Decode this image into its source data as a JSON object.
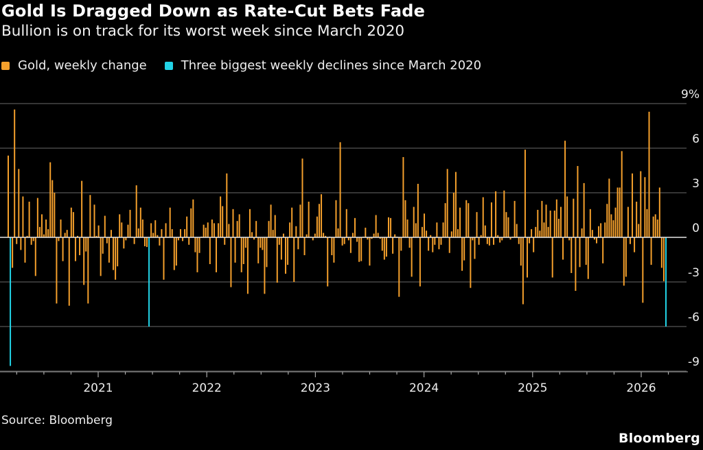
{
  "title": "Gold Is Dragged Down as Rate-Cut Bets Fade",
  "subtitle": "Bullion is on track for its worst week since March 2020",
  "source": "Source: Bloomberg",
  "logo": "Bloomberg",
  "colors": {
    "background": "#000000",
    "gold": "#f5a02c",
    "highlight": "#22d3e6",
    "grid": "#555555"
  },
  "chart_data": {
    "type": "bar",
    "frequency": "weekly",
    "ylabel": "",
    "xlabel": "",
    "ylim": [
      -9.5,
      9
    ],
    "y_ticks": [
      9,
      6,
      3,
      0,
      -3,
      -6,
      -9
    ],
    "y_tick_labels": [
      "9%",
      "6",
      "3",
      "0",
      "-3",
      "-6",
      "-9"
    ],
    "x_tick_labels": [
      "2021",
      "2022",
      "2023",
      "2024",
      "2025",
      "2026"
    ],
    "grid": true,
    "legend": "top-left",
    "series": [
      {
        "name": "Gold, weekly change",
        "color": "#f5a02c",
        "values": [
          5.5,
          -8.65,
          -2.05,
          8.6,
          -0.45,
          4.6,
          -0.85,
          2.75,
          -1.7,
          0.1,
          2.4,
          -0.5,
          -0.25,
          -2.6,
          2.65,
          0.7,
          1.55,
          0.2,
          1.2,
          0.55,
          5.05,
          3.85,
          3.0,
          -4.45,
          -0.25,
          1.2,
          -1.6,
          0.3,
          0.5,
          -4.6,
          2.0,
          1.7,
          -1.6,
          0.1,
          -1.2,
          3.8,
          -3.2,
          -0.95,
          -4.45,
          2.85,
          0.05,
          2.2,
          0.1,
          0.8,
          -2.6,
          -1.1,
          1.45,
          -0.4,
          -1.7,
          0.5,
          -2.2,
          -2.85,
          -1.95,
          1.55,
          1.0,
          -0.75,
          -0.2,
          0.85,
          1.85,
          0.05,
          -0.45,
          3.5,
          0.6,
          2.0,
          1.2,
          -0.6,
          -0.65,
          -6.0,
          0.95,
          0.3,
          1.15,
          0.15,
          -0.55,
          0.55,
          -2.85,
          0.95,
          0.05,
          2.0,
          0.55,
          -2.2,
          -1.9,
          -0.2,
          0.55,
          -0.25,
          0.55,
          1.4,
          -0.5,
          1.95,
          2.55,
          -1.0,
          -2.35,
          -1.05,
          0.05,
          0.85,
          0.65,
          1.0,
          -1.8,
          1.2,
          0.95,
          -2.35,
          0.95,
          2.75,
          2.1,
          -0.5,
          4.3,
          0.9,
          -3.35,
          1.9,
          -1.7,
          1.1,
          1.55,
          -2.35,
          -1.8,
          -0.7,
          -3.8,
          1.9,
          0.35,
          -0.15,
          1.1,
          -1.75,
          -0.7,
          -0.85,
          -3.8,
          -2.0,
          1.1,
          2.2,
          0.5,
          1.5,
          -3.05,
          -0.5,
          -1.5,
          0.25,
          -2.45,
          -1.85,
          1.0,
          2.0,
          -3.0,
          0.75,
          -0.8,
          2.2,
          5.3,
          -1.2,
          0.2,
          2.4,
          0.05,
          -0.2,
          0.25,
          1.4,
          2.25,
          2.9,
          0.3,
          0.1,
          -3.3,
          0.05,
          -1.2,
          -1.7,
          2.5,
          0.6,
          6.4,
          -0.55,
          -0.45,
          1.9,
          -0.2,
          -1.05,
          0.3,
          1.3,
          -0.3,
          -1.65,
          -1.6,
          0.05,
          0.65,
          -0.15,
          -1.9,
          -0.1,
          0.25,
          1.5,
          0.3,
          -0.1,
          -0.9,
          -1.5,
          -1.3,
          1.35,
          1.3,
          -1.1,
          0.2,
          0.05,
          -4.0,
          -0.9,
          5.4,
          2.5,
          1.2,
          -0.7,
          -2.65,
          2.05,
          0.95,
          3.6,
          -3.3,
          0.7,
          1.6,
          0.45,
          -0.9,
          0.15,
          -1.0,
          -0.5,
          1.0,
          -0.8,
          -0.5,
          1.0,
          2.3,
          4.6,
          -1.05,
          0.4,
          3.0,
          4.4,
          0.55,
          2.0,
          -2.25,
          -1.55,
          2.5,
          2.3,
          -3.4,
          -0.2,
          -1.45,
          1.7,
          -0.5,
          0.15,
          2.7,
          0.8,
          -0.45,
          -0.55,
          2.35,
          -0.5,
          3.1,
          0.15,
          -0.35,
          -0.2,
          3.15,
          1.7,
          1.35,
          -0.15,
          0.05,
          2.45,
          0.9,
          -0.45,
          -1.9,
          -4.5,
          5.9,
          -2.7,
          -0.4,
          0.55,
          -1.0,
          0.7,
          1.85,
          0.45,
          2.45,
          1.0,
          2.2,
          0.7,
          1.8,
          -2.7,
          1.8,
          2.55,
          1.25,
          2.05,
          -1.5,
          6.5,
          2.75,
          -0.2,
          -2.4,
          2.6,
          -3.6,
          4.8,
          -2.0,
          0.6,
          3.65,
          -1.85,
          -2.8,
          1.9,
          0.5,
          -0.15,
          -0.4,
          0.75,
          0.95,
          -1.75,
          1.0,
          2.25,
          3.95,
          1.55,
          1.15,
          2.0,
          3.35,
          3.35,
          5.8,
          -3.25,
          -2.65,
          2.05,
          -0.45,
          4.3,
          -1.0,
          2.4,
          0.9,
          4.45,
          -4.4,
          4.05,
          1.9,
          8.45,
          -1.85,
          1.4,
          1.55,
          1.2,
          3.35,
          -2.05,
          -2.95,
          -6.0
        ]
      },
      {
        "name": "Three biggest weekly declines since March 2020",
        "color": "#22d3e6"
      }
    ]
  }
}
